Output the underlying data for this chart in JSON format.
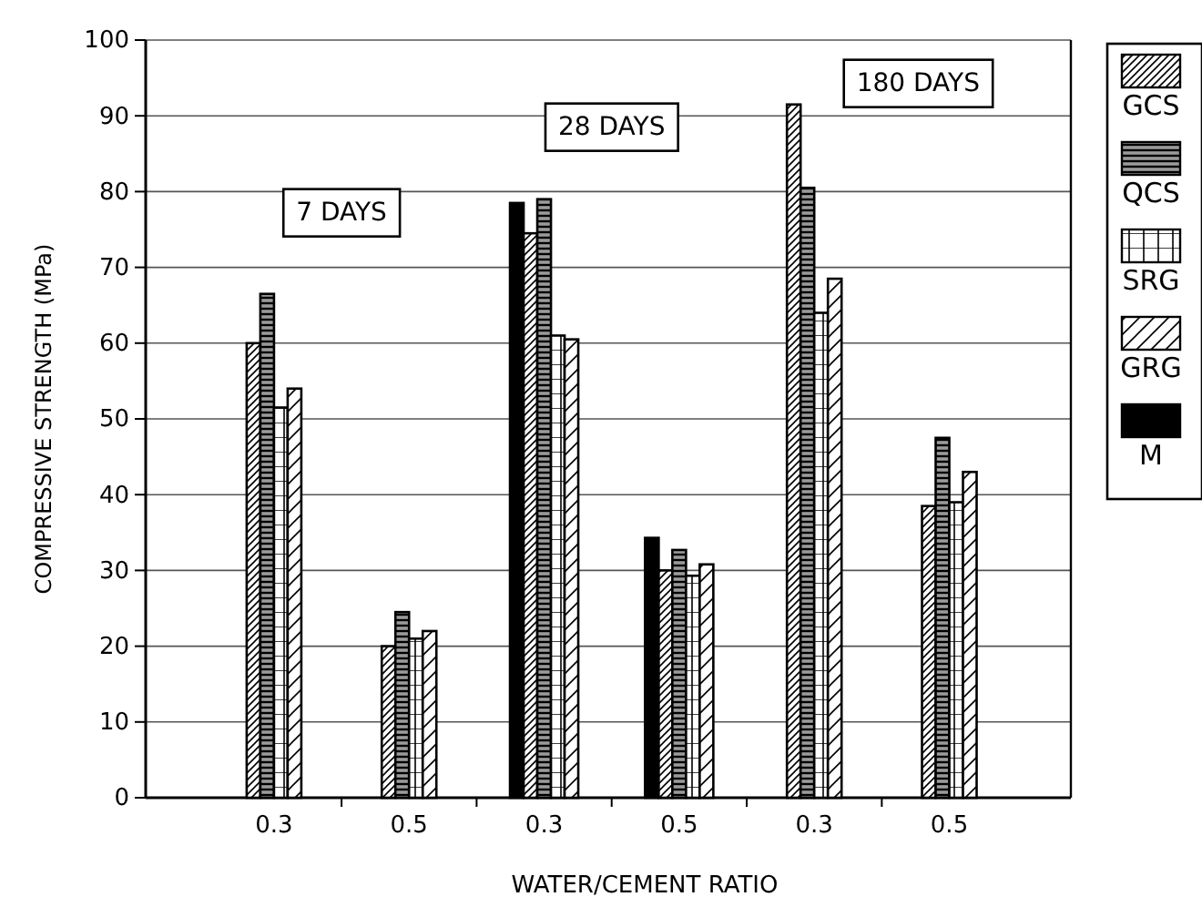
{
  "chart_data": {
    "type": "bar",
    "xlabel": "WATER/CEMENT RATIO",
    "ylabel": "COMPRESSIVE STRENGTH (MPa)",
    "categories": [
      "0.3",
      "0.5",
      "0.3",
      "0.5",
      "0.3",
      "0.5"
    ],
    "series": [
      {
        "name": "M",
        "color": "#000000",
        "values": [
          null,
          null,
          78.5,
          34.3,
          null,
          null
        ]
      },
      {
        "name": "GCS",
        "color": "#000000",
        "values": [
          60,
          20,
          74.5,
          30,
          91.5,
          38.5
        ]
      },
      {
        "name": "QCS",
        "color": "#000000",
        "values": [
          66.5,
          24.5,
          79,
          32.7,
          80.5,
          47.5
        ]
      },
      {
        "name": "SRG",
        "color": "#000000",
        "values": [
          51.5,
          21,
          61,
          29.3,
          64,
          39
        ]
      },
      {
        "name": "GRG",
        "color": "#000000",
        "values": [
          54,
          22,
          60.5,
          30.8,
          68.5,
          43
        ]
      }
    ],
    "annotations": [
      "7 DAYS",
      "28 DAYS",
      "180 DAYS"
    ],
    "ylim": [
      0,
      100
    ],
    "yticks": [
      0,
      10,
      20,
      30,
      40,
      50,
      60,
      70,
      80,
      90,
      100
    ],
    "grid": "y",
    "legend": "right"
  }
}
